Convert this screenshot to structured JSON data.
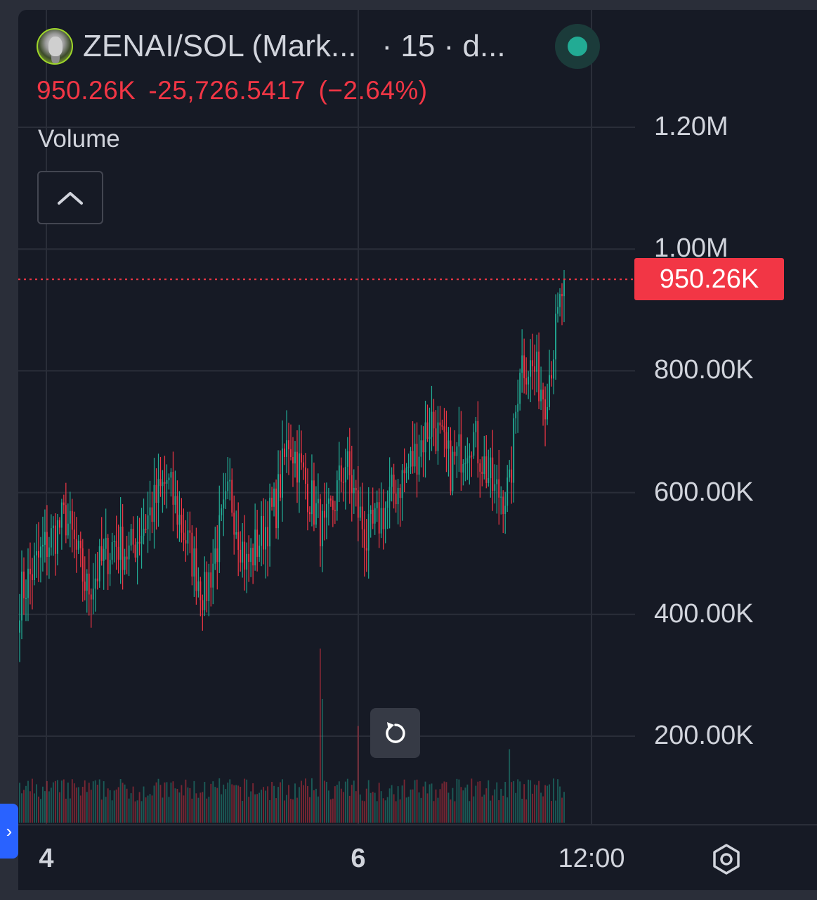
{
  "header": {
    "symbol": "ZENAI/SOL (Mark...",
    "interval": "· 15 · d...",
    "last_price": "950.26K",
    "change": "-25,726.5417",
    "change_pct": "(−2.64%)",
    "volume_label": "Volume"
  },
  "colors": {
    "up": "#22ab94",
    "down": "#f23645",
    "background": "#161a25",
    "grid": "#2a2e39",
    "text": "#d1d4dc",
    "status": "#22ab94"
  },
  "icons": {
    "logo": "zenai-logo-icon",
    "status": "status-dot-icon",
    "collapse": "chevron-up-icon",
    "reset": "reset-icon",
    "settings": "settings-icon",
    "side_tab": "chevron-right-icon"
  },
  "chart_data": {
    "type": "candlestick",
    "y_ticks": [
      "1.20M",
      "1.00M",
      "800.00K",
      "600.00K",
      "400.00K",
      "200.00K"
    ],
    "y_tick_values": [
      1200000,
      1000000,
      800000,
      600000,
      400000,
      200000
    ],
    "x_ticks": [
      {
        "label": "4",
        "bold": true
      },
      {
        "label": "6",
        "bold": true
      },
      {
        "label": "12:00",
        "bold": false
      }
    ],
    "current_price": 950260,
    "current_price_label": "950.26K",
    "candle_count": 260,
    "anchors": [
      {
        "i": 0,
        "v": 430000
      },
      {
        "i": 12,
        "v": 510000
      },
      {
        "i": 22,
        "v": 560000
      },
      {
        "i": 32,
        "v": 440000
      },
      {
        "i": 45,
        "v": 520000
      },
      {
        "i": 52,
        "v": 500000
      },
      {
        "i": 70,
        "v": 620000
      },
      {
        "i": 88,
        "v": 430000
      },
      {
        "i": 100,
        "v": 600000
      },
      {
        "i": 108,
        "v": 480000
      },
      {
        "i": 122,
        "v": 580000
      },
      {
        "i": 128,
        "v": 690000
      },
      {
        "i": 145,
        "v": 530000
      },
      {
        "i": 155,
        "v": 650000
      },
      {
        "i": 165,
        "v": 520000
      },
      {
        "i": 178,
        "v": 600000
      },
      {
        "i": 188,
        "v": 660000
      },
      {
        "i": 196,
        "v": 720000
      },
      {
        "i": 205,
        "v": 640000
      },
      {
        "i": 215,
        "v": 700000
      },
      {
        "i": 226,
        "v": 600000
      },
      {
        "i": 233,
        "v": 600000
      },
      {
        "i": 238,
        "v": 820000
      },
      {
        "i": 245,
        "v": 800000
      },
      {
        "i": 250,
        "v": 760000
      },
      {
        "i": 255,
        "v": 860000
      },
      {
        "i": 259,
        "v": 950260
      }
    ],
    "volume_spikes": [
      {
        "i": 143,
        "r": 4.5
      },
      {
        "i": 144,
        "r": 3.2
      },
      {
        "i": 161,
        "r": 2.5
      },
      {
        "i": 233,
        "r": 1.9
      }
    ]
  }
}
